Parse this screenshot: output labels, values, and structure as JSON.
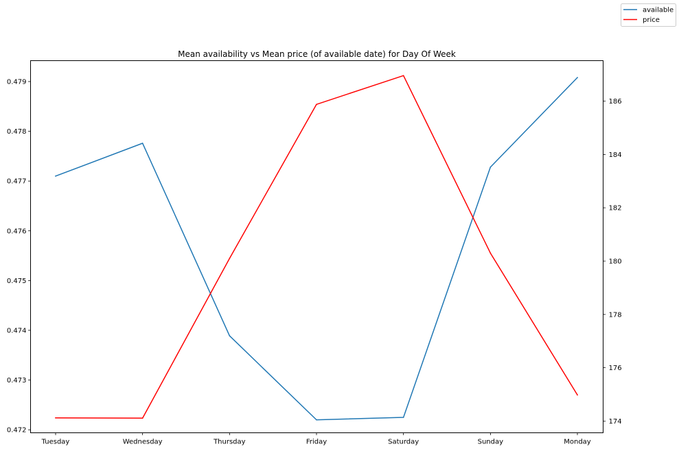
{
  "chart_data": {
    "type": "line",
    "title": "Mean availability vs Mean price (of available date) for Day Of Week",
    "categories": [
      "Tuesday",
      "Wednesday",
      "Thursday",
      "Friday",
      "Saturday",
      "Sunday",
      "Monday"
    ],
    "series": [
      {
        "name": "available",
        "axis": "left",
        "color": "#1f77b4",
        "values": [
          0.4771,
          0.47776,
          0.47389,
          0.4722,
          0.47225,
          0.47728,
          0.47908
        ]
      },
      {
        "name": "price",
        "axis": "right",
        "color": "#ff0000",
        "values": [
          174.12,
          174.11,
          180.1,
          185.88,
          186.96,
          180.3,
          174.98
        ]
      }
    ],
    "y_left": {
      "ticks": [
        "0.472",
        "0.473",
        "0.474",
        "0.475",
        "0.476",
        "0.477",
        "0.478",
        "0.479"
      ],
      "lim": [
        0.47194,
        0.47942
      ]
    },
    "y_right": {
      "ticks": [
        "174",
        "176",
        "178",
        "180",
        "182",
        "184",
        "186"
      ],
      "lim": [
        173.56,
        187.52
      ]
    },
    "grid": false,
    "legend": {
      "placement": "top-right (outside axes)",
      "entries": [
        "available",
        "price"
      ]
    }
  }
}
